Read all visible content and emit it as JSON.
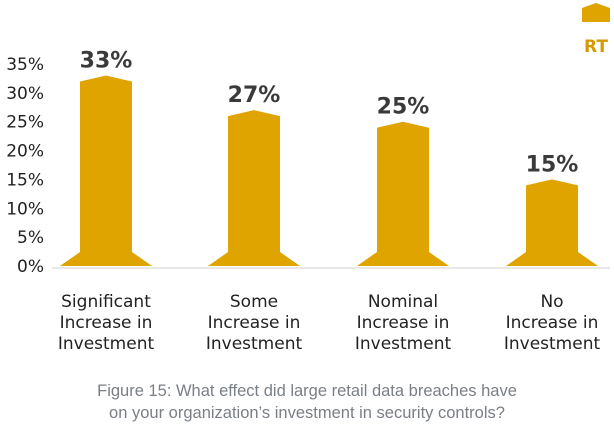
{
  "chart_data": {
    "type": "bar",
    "categories": [
      "Significant Increase in Investment",
      "Some Increase in Investment",
      "Nominal Increase in Investment",
      "No Increase in Investment"
    ],
    "category_lines": [
      [
        "Significant",
        "Increase in",
        "Investment"
      ],
      [
        "Some",
        "Increase in",
        "Investment"
      ],
      [
        "Nominal",
        "Increase in",
        "Investment"
      ],
      [
        "No",
        "Increase in",
        "Investment"
      ]
    ],
    "series": [
      {
        "name": "RT",
        "values": [
          33,
          27,
          25,
          15
        ]
      }
    ],
    "data_labels": [
      "33%",
      "27%",
      "25%",
      "15%"
    ],
    "yticks": [
      0,
      5,
      10,
      15,
      20,
      25,
      30,
      35
    ],
    "ytick_labels": [
      "0%",
      "5%",
      "10%",
      "15%",
      "20%",
      "25%",
      "30%",
      "35%"
    ],
    "ylim": [
      0,
      35
    ],
    "grid": false,
    "legend_position": "top-right",
    "bar_color": "#e0a400"
  },
  "caption": {
    "line1": "Figure 15: What effect did large retail data breaches have",
    "line2": "on your organization’s investment in security controls?"
  }
}
